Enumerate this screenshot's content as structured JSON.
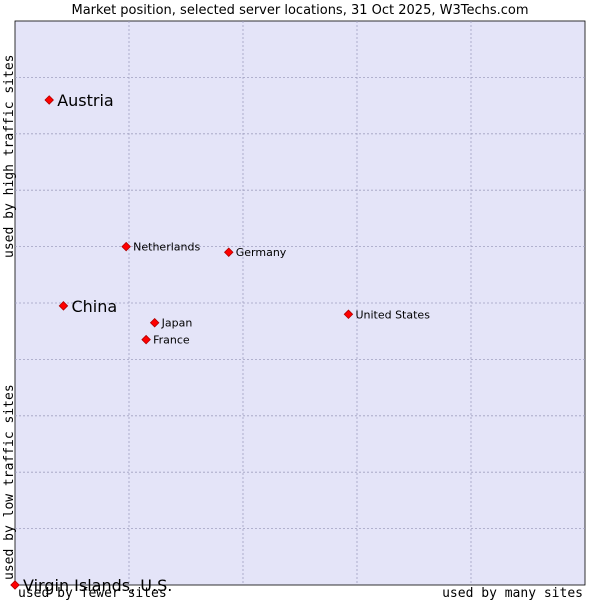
{
  "chart_data": {
    "type": "scatter",
    "title": "Market position, selected server locations, 31 Oct 2025, W3Techs.com",
    "xlabel_low": "used by fewer sites",
    "xlabel_high": "used by many sites",
    "ylabel_low": "used by low traffic sites",
    "ylabel_high": "used by high traffic sites",
    "xlim": [
      0,
      100
    ],
    "ylim": [
      0,
      100
    ],
    "grid": true,
    "marker_color": "#ff0000",
    "background": "#e4e4f8",
    "points": [
      {
        "label": "Austria",
        "x": 6,
        "y": 86,
        "emphasis": true
      },
      {
        "label": "China",
        "x": 8.5,
        "y": 49.5,
        "emphasis": true
      },
      {
        "label": "Virgin Islands, U.S.",
        "x": 0,
        "y": 0,
        "emphasis": true
      },
      {
        "label": "Netherlands",
        "x": 19.5,
        "y": 60,
        "emphasis": false
      },
      {
        "label": "Germany",
        "x": 37.5,
        "y": 59,
        "emphasis": false
      },
      {
        "label": "United States",
        "x": 58.5,
        "y": 48,
        "emphasis": false
      },
      {
        "label": "Japan",
        "x": 24.5,
        "y": 46.5,
        "emphasis": false
      },
      {
        "label": "France",
        "x": 23,
        "y": 43.5,
        "emphasis": false
      }
    ]
  }
}
